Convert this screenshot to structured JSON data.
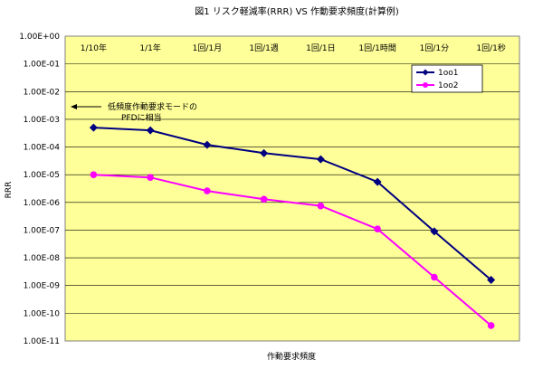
{
  "chart_data": {
    "type": "line",
    "title": "図1 リスク軽減率(RRR) VS 作動要求頻度(計算例)",
    "xlabel": "作動要求頻度",
    "ylabel": "RRR",
    "y_scale": "log",
    "ylim": [
      1e-11,
      1
    ],
    "y_tick_labels": [
      "1.00E+00",
      "1.00E-01",
      "1.00E-02",
      "1.00E-03",
      "1.00E-04",
      "1.00E-05",
      "1.00E-06",
      "1.00E-07",
      "1.00E-08",
      "1.00E-09",
      "1.00E-10",
      "1.00E-11"
    ],
    "categories": [
      "1/10年",
      "1/1年",
      "1回/1月",
      "1回/1週",
      "1回/1日",
      "1回/1時間",
      "1回/1分",
      "1回/1秒"
    ],
    "series": [
      {
        "name": "1oo1",
        "color": "#000080",
        "marker": "diamond",
        "values": [
          0.0005,
          0.0004,
          0.00012,
          6e-05,
          3.6e-05,
          5.5e-06,
          9e-08,
          1.6e-09
        ]
      },
      {
        "name": "1oo2",
        "color": "#ff00ff",
        "marker": "circle",
        "values": [
          1e-05,
          8e-06,
          2.6e-06,
          1.3e-06,
          7.5e-07,
          1.1e-07,
          2e-09,
          3.6e-11
        ]
      }
    ],
    "annotation": {
      "lines": [
        "低頻度作動要求モードの",
        "PFDに相当"
      ],
      "arrow_to_value": 0.003
    },
    "legend_position": "top-right",
    "grid": true,
    "plot_background": "#ffff99",
    "frame_color": "#808080"
  }
}
